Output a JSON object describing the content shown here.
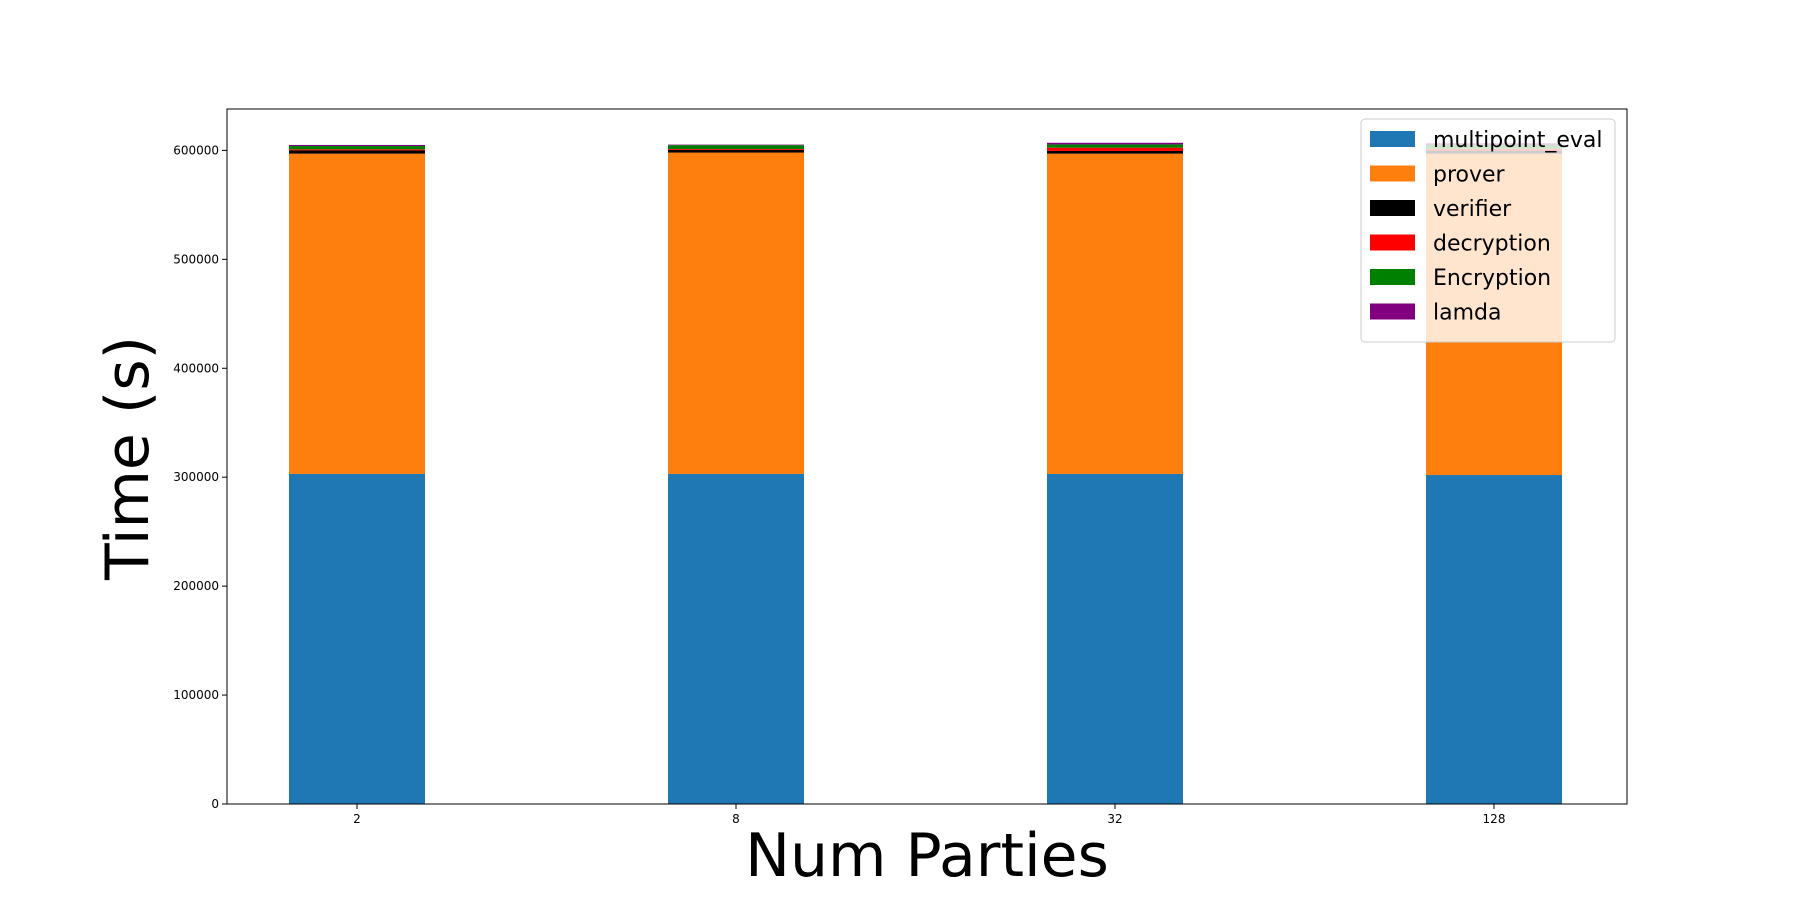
{
  "chart_data": {
    "type": "bar",
    "stacked": true,
    "categories": [
      "2",
      "8",
      "32",
      "128"
    ],
    "xlabel": "Num Parties",
    "ylabel": "Time (s)",
    "ylim": [
      0,
      638000
    ],
    "yticks": [
      0,
      100000,
      200000,
      300000,
      400000,
      500000,
      600000
    ],
    "legend_position": "top-right",
    "grid": false,
    "series": [
      {
        "name": "multipoint_eval",
        "color": "#1f77b4",
        "values": [
          303000,
          303000,
          303000,
          302000
        ]
      },
      {
        "name": "prover",
        "color": "#ff7f0e",
        "values": [
          294000,
          295000,
          294000,
          295000
        ]
      },
      {
        "name": "verifier",
        "color": "#000000",
        "values": [
          3000,
          2500,
          2500,
          2500
        ]
      },
      {
        "name": "decryption",
        "color": "#ff0000",
        "values": [
          1000,
          800,
          3000,
          2000
        ]
      },
      {
        "name": "Encryption",
        "color": "#008000",
        "values": [
          3000,
          3500,
          3000,
          3500
        ]
      },
      {
        "name": "lamda",
        "color": "#800080",
        "values": [
          1000,
          500,
          1500,
          1500
        ]
      }
    ]
  }
}
